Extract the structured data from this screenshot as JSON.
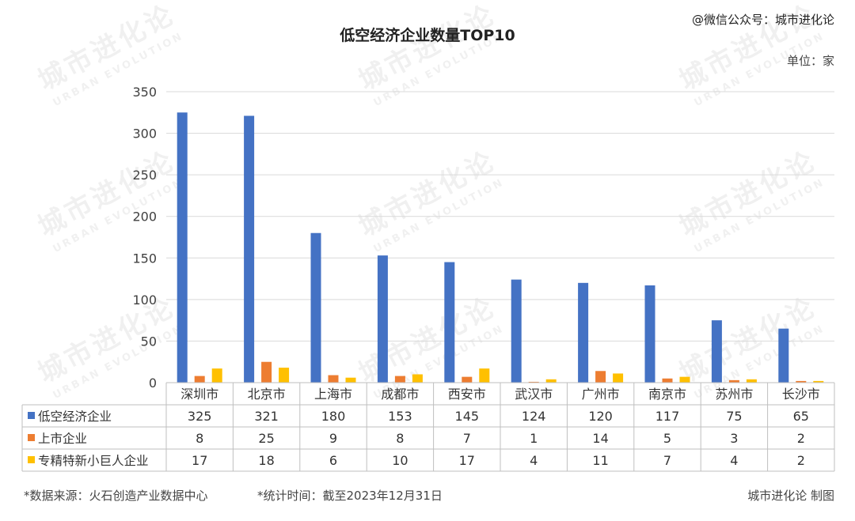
{
  "header": {
    "title": "低空经济企业数量TOP10",
    "credit": "@微信公众号：城市进化论",
    "unit": "单位：家"
  },
  "footer": {
    "source": "*数据来源：火石创造产业数据中心",
    "time": "*统计时间：截至2023年12月31日",
    "maker": "城市进化论 制图"
  },
  "watermark": {
    "text": "城市进化论",
    "subtext": "URBAN EVOLUTION"
  },
  "chart_data": {
    "type": "bar",
    "title": "低空经济企业数量TOP10",
    "categories": [
      "深圳市",
      "北京市",
      "上海市",
      "成都市",
      "西安市",
      "武汉市",
      "广州市",
      "南京市",
      "苏州市",
      "长沙市"
    ],
    "series": [
      {
        "name": "低空经济企业",
        "color": "#4472C4",
        "values": [
          325,
          321,
          180,
          153,
          145,
          124,
          120,
          117,
          75,
          65
        ]
      },
      {
        "name": "上市企业",
        "color": "#ED7D31",
        "values": [
          8,
          25,
          9,
          8,
          7,
          1,
          14,
          5,
          3,
          2
        ]
      },
      {
        "name": "专精特新小巨人企业",
        "color": "#FFC000",
        "values": [
          17,
          18,
          6,
          10,
          17,
          4,
          11,
          7,
          4,
          2
        ]
      }
    ],
    "ylim": [
      0,
      350
    ],
    "yticks": [
      "0",
      "50",
      "100",
      "150",
      "200",
      "250",
      "300",
      "350"
    ],
    "grid": true,
    "legend": "data-table"
  }
}
